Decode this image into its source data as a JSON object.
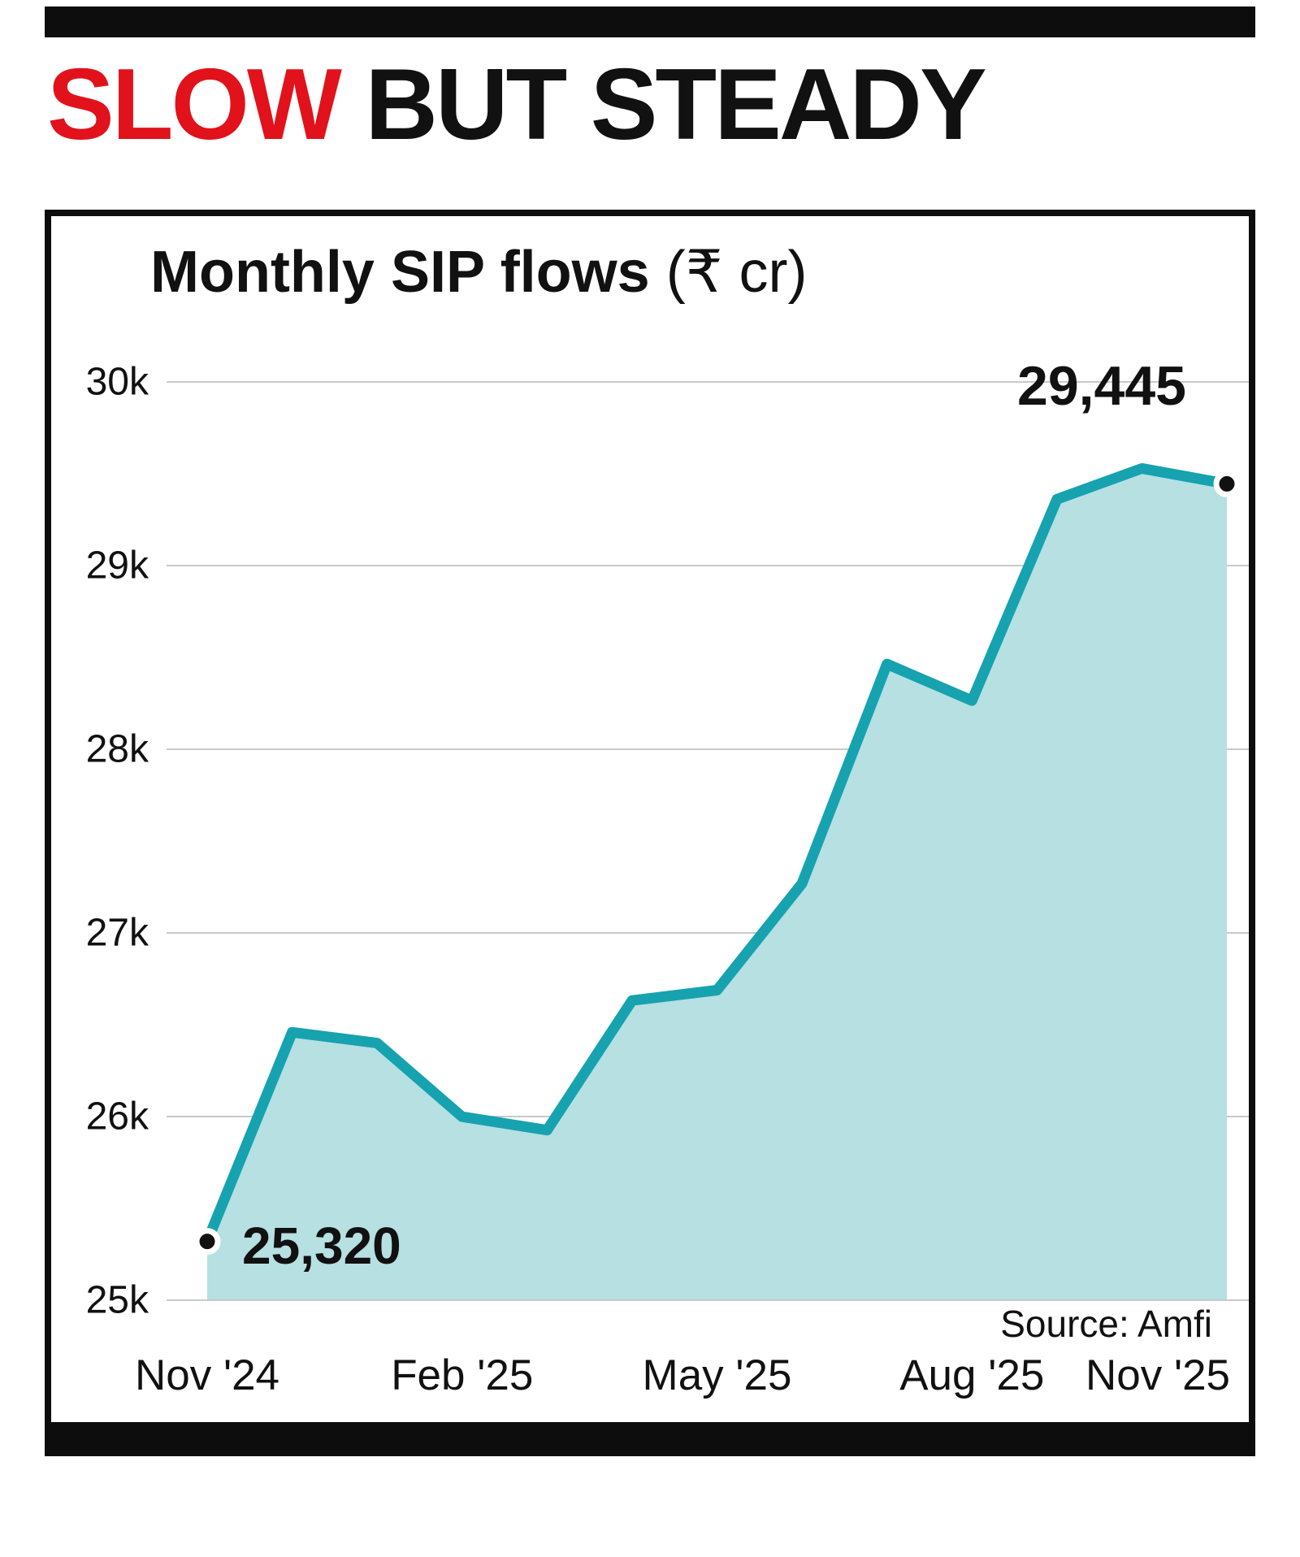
{
  "header": {
    "title_red": "SLOW",
    "title_black": " BUT STEADY"
  },
  "chart": {
    "title": "Monthly SIP flows ",
    "unit": "(₹ cr)",
    "source": "Source: Amfi",
    "start_label": "25,320",
    "end_label": "29,445"
  },
  "chart_data": {
    "type": "area",
    "title": "Monthly SIP flows (₹ cr)",
    "x": [
      "Nov '24",
      "Dec '24",
      "Jan '25",
      "Feb '25",
      "Mar '25",
      "Apr '25",
      "May '25",
      "Jun '25",
      "Jul '25",
      "Aug '25",
      "Sep '25",
      "Oct '25",
      "Nov '25"
    ],
    "values": [
      25320,
      26459,
      26400,
      25999,
      25926,
      26632,
      26688,
      27269,
      28464,
      28265,
      29361,
      29529,
      29445
    ],
    "ylim": [
      25000,
      30000
    ],
    "yticks": [
      25000,
      26000,
      27000,
      28000,
      29000,
      30000
    ],
    "ytick_labels": [
      "25k",
      "26k",
      "27k",
      "28k",
      "29k",
      "30k"
    ],
    "xtick_labels": [
      "Nov '24",
      "Feb '25",
      "May '25",
      "Aug '25",
      "Nov '25"
    ],
    "xtick_indices": [
      0,
      3,
      6,
      9,
      12
    ],
    "first_point_label": "25,320",
    "last_point_label": "29,445",
    "line_color": "#17a2b0",
    "fill_color": "#b6e0e2",
    "grid": true,
    "grid_color": "#c9c9c9",
    "legend": false,
    "source": "Amfi"
  }
}
